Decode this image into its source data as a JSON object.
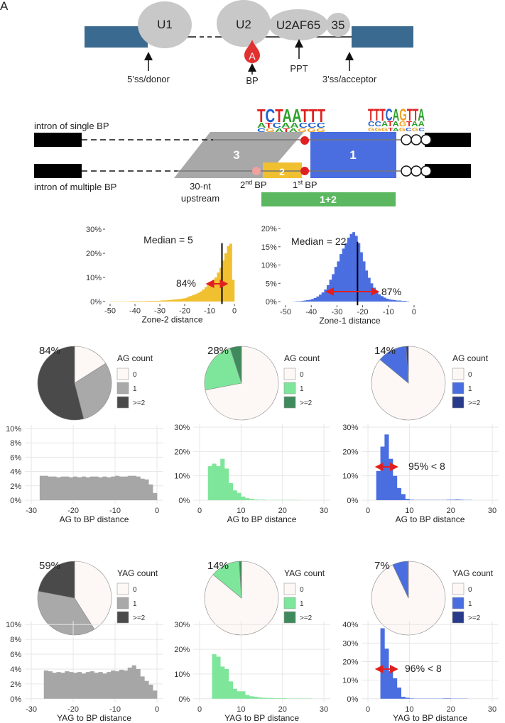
{
  "panel_a": {
    "label": "A",
    "u1": "U1",
    "u2": "U2",
    "u2af65": "U2AF65",
    "u2af35": "35",
    "bp_base": "A",
    "donor": "5’ss/donor",
    "bp": "BP",
    "ppt": "PPT",
    "acceptor": "3’ss/acceptor"
  },
  "panel_b": {
    "logo_left": [
      "TCTAATTT",
      "ATCAACCC",
      "CGATAGGG"
    ],
    "logo_right": [
      "TTTCAGTTA",
      "CCATAGTAA",
      "GGGTAGCGC"
    ],
    "single": "intron of single BP",
    "multiple": "intron of multiple BP",
    "zone3": "3",
    "zone1": "1",
    "zone2": "2",
    "upstream": [
      "30-nt",
      "upstream"
    ],
    "second_bp": {
      "num": "2",
      "sup": "nd",
      "text": "BP"
    },
    "first_bp": {
      "num": "1",
      "sup": "st",
      "text": "BP"
    },
    "zone12": "1+2"
  },
  "chart_data": [
    {
      "type": "histogram",
      "xlabel": "Zone-2 distance",
      "color": "#f0c030",
      "grid": false,
      "bins": [
        -50,
        -49,
        -48,
        -47,
        -46,
        -45,
        -44,
        -43,
        -42,
        -41,
        -40,
        -39,
        -38,
        -37,
        -36,
        -35,
        -34,
        -33,
        -32,
        -31,
        -30,
        -29,
        -28,
        -27,
        -26,
        -25,
        -24,
        -23,
        -22,
        -21,
        -20,
        -19,
        -18,
        -17,
        -16,
        -15,
        -14,
        -13,
        -12,
        -11,
        -10,
        -9,
        -8,
        -7,
        -6,
        -5,
        -4,
        -3,
        -2,
        -1,
        0
      ],
      "values": [
        0.1,
        0.1,
        0.1,
        0.1,
        0.1,
        0.1,
        0.1,
        0.1,
        0.2,
        0.2,
        0.2,
        0.2,
        0.2,
        0.2,
        0.2,
        0.3,
        0.3,
        0.3,
        0.3,
        0.3,
        0.4,
        0.5,
        0.5,
        0.6,
        0.7,
        0.8,
        0.9,
        1.0,
        1.1,
        1.3,
        1.5,
        2.0,
        2.3,
        2.7,
        3.1,
        3.6,
        4.2,
        5.0,
        6.0,
        7.0,
        8,
        9,
        10,
        12,
        14,
        17,
        20,
        23,
        24,
        9
      ],
      "xlim": [
        -52,
        2
      ],
      "ylim": [
        -1,
        31
      ],
      "xticks": [
        -50,
        -40,
        -30,
        -20,
        -10,
        0
      ],
      "yticks": [
        {
          "value": 0,
          "label": "0%"
        },
        {
          "value": 10,
          "label": "10%"
        },
        {
          "value": 20,
          "label": "20%"
        },
        {
          "value": 30,
          "label": "30%"
        }
      ],
      "median": -5,
      "median_label": "Median = 5",
      "arrow": [
        -11,
        -3
      ],
      "arrow_label": "84%"
    },
    {
      "type": "histogram",
      "xlabel": "Zone-1 distance",
      "color": "#4a6ee0",
      "grid": false,
      "bins": [
        -50,
        -49,
        -48,
        -47,
        -46,
        -45,
        -44,
        -43,
        -42,
        -41,
        -40,
        -39,
        -38,
        -37,
        -36,
        -35,
        -34,
        -33,
        -32,
        -31,
        -30,
        -29,
        -28,
        -27,
        -26,
        -25,
        -24,
        -23,
        -22,
        -21,
        -20,
        -19,
        -18,
        -17,
        -16,
        -15,
        -14,
        -13,
        -12,
        -11,
        -10,
        -9,
        -8,
        -7,
        -6,
        -5,
        -4,
        -3,
        -2,
        -1,
        0
      ],
      "values": [
        0,
        0,
        0,
        0.05,
        0.1,
        0.1,
        0.2,
        0.3,
        0.4,
        0.5,
        0.7,
        1.0,
        1.4,
        1.9,
        2.5,
        3.3,
        4.5,
        6,
        7.5,
        9.5,
        11,
        13,
        14.5,
        16,
        17.5,
        18.5,
        19,
        18,
        16,
        13.5,
        11,
        8.5,
        6.5,
        5,
        3.8,
        2.8,
        2,
        1.5,
        1.1,
        0.8,
        0.6,
        0.5,
        0.4,
        0.3,
        0.3,
        0.2,
        0.2,
        0.1,
        0,
        0
      ],
      "xlim": [
        -52,
        2
      ],
      "ylim": [
        -1,
        21
      ],
      "xticks": [
        -50,
        -40,
        -30,
        -20,
        -10,
        0
      ],
      "yticks": [
        {
          "value": 0,
          "label": "0%"
        },
        {
          "value": 5,
          "label": "5%"
        },
        {
          "value": 10,
          "label": "10%"
        },
        {
          "value": 15,
          "label": "15%"
        },
        {
          "value": 20,
          "label": "20%"
        }
      ],
      "median": -22,
      "median_label": "Median = 22",
      "arrow": [
        -34,
        -14
      ],
      "arrow_label": "87%"
    },
    {
      "type": "pie",
      "legend_title": "AG count",
      "categories": [
        "0",
        "1",
        ">=2"
      ],
      "values": [
        16,
        30,
        54
      ],
      "colors": [
        "#fdf8f5",
        "#a9a9a9",
        "#4a4a4a"
      ],
      "annotation": "84%"
    },
    {
      "type": "pie",
      "legend_title": "AG count",
      "categories": [
        "0",
        "1",
        ">=2"
      ],
      "values": [
        72,
        23,
        5
      ],
      "colors": [
        "#fdf8f5",
        "#7ee69a",
        "#3f8a5c"
      ],
      "annotation": "28%"
    },
    {
      "type": "pie",
      "legend_title": "AG count",
      "categories": [
        "0",
        "1",
        ">=2"
      ],
      "values": [
        86,
        13,
        1
      ],
      "colors": [
        "#fdf8f5",
        "#4a6ee0",
        "#283a8a"
      ],
      "annotation": "14%"
    },
    {
      "type": "histogram",
      "xlabel": "AG to BP distance",
      "color": "#a6a6a6",
      "grid": true,
      "bins": [
        -28,
        -27,
        -26,
        -25,
        -24,
        -23,
        -22,
        -21,
        -20,
        -19,
        -18,
        -17,
        -16,
        -15,
        -14,
        -13,
        -12,
        -11,
        -10,
        -9,
        -8,
        -7,
        -6,
        -5,
        -4,
        -3,
        -2,
        -1,
        0
      ],
      "values": [
        3.4,
        3.4,
        3.3,
        3.3,
        3.2,
        3.3,
        3.3,
        3.2,
        3.3,
        3.2,
        3.3,
        3.2,
        3.3,
        3.3,
        3.2,
        3.3,
        3.2,
        3.3,
        3.4,
        3.3,
        3.3,
        3.4,
        3.4,
        3.3,
        3.0,
        2.9,
        2.2,
        1.0
      ],
      "xlim": [
        -31.5,
        1.5
      ],
      "ylim": [
        -0.5,
        10.5
      ],
      "xticks": [
        -30,
        -20,
        -10,
        0
      ],
      "yticks": [
        {
          "value": 0,
          "label": "0%"
        },
        {
          "value": 2,
          "label": "2%"
        },
        {
          "value": 4,
          "label": "4%"
        },
        {
          "value": 6,
          "label": "6%"
        },
        {
          "value": 8,
          "label": "8%"
        },
        {
          "value": 10,
          "label": "10%"
        }
      ]
    },
    {
      "type": "histogram",
      "xlabel": "AG to BP distance",
      "color": "#7ee69a",
      "grid": true,
      "bins": [
        2,
        3,
        4,
        5,
        6,
        7,
        8,
        9,
        10,
        11,
        12,
        13,
        14,
        15,
        16,
        17,
        18,
        19,
        20,
        21,
        22,
        23,
        24,
        25,
        26,
        27,
        28,
        29,
        30
      ],
      "values": [
        14,
        15,
        14,
        17,
        13,
        7,
        4,
        3,
        1.5,
        0.8,
        0.5,
        0.3,
        0.2,
        0.2,
        0.1,
        0.1,
        0.1,
        0.1,
        0.1,
        0.1,
        0.1,
        0.1,
        0,
        0,
        0,
        0,
        0,
        0
      ],
      "xlim": [
        -1.5,
        31.5
      ],
      "ylim": [
        -1.5,
        31.5
      ],
      "xticks": [
        0,
        10,
        20,
        30
      ],
      "yticks": [
        {
          "value": 0,
          "label": "0%"
        },
        {
          "value": 10,
          "label": "10%"
        },
        {
          "value": 20,
          "label": "20%"
        },
        {
          "value": 30,
          "label": "30%"
        }
      ]
    },
    {
      "type": "histogram",
      "xlabel": "AG to BP distance",
      "color": "#4a6ee0",
      "grid": true,
      "bins": [
        2,
        3,
        4,
        5,
        6,
        7,
        8,
        9,
        10,
        11,
        12,
        13,
        14,
        15,
        16,
        17,
        18,
        19,
        20,
        21,
        22,
        23,
        24,
        25,
        26,
        27,
        28,
        29,
        30
      ],
      "values": [
        12,
        22,
        27,
        17,
        10,
        5,
        2.5,
        0.5,
        0.2,
        0.1,
        0.1,
        0.1,
        0.1,
        0.1,
        0.1,
        0.1,
        0.1,
        0.2,
        0.2,
        0.3,
        0.2,
        0.1,
        0.1,
        0,
        0,
        0,
        0,
        0
      ],
      "xlim": [
        -1.5,
        31.5
      ],
      "ylim": [
        -1.5,
        31.5
      ],
      "xticks": [
        0,
        10,
        20,
        30
      ],
      "yticks": [
        {
          "value": 0,
          "label": "0%"
        },
        {
          "value": 10,
          "label": "10%"
        },
        {
          "value": 20,
          "label": "20%"
        },
        {
          "value": 30,
          "label": "30%"
        }
      ],
      "arrow": [
        2,
        7
      ],
      "arrow_label": "95% < 8"
    },
    {
      "type": "pie",
      "legend_title": "YAG count",
      "categories": [
        "0",
        "1",
        ">=2"
      ],
      "values": [
        41,
        37,
        22
      ],
      "colors": [
        "#fdf8f5",
        "#a9a9a9",
        "#4a4a4a"
      ],
      "annotation": "59%"
    },
    {
      "type": "pie",
      "legend_title": "YAG count",
      "categories": [
        "0",
        "1",
        ">=2"
      ],
      "values": [
        86,
        13,
        1
      ],
      "colors": [
        "#fdf8f5",
        "#7ee69a",
        "#3f8a5c"
      ],
      "annotation": "14%"
    },
    {
      "type": "pie",
      "legend_title": "YAG count",
      "categories": [
        "0",
        "1",
        ">=2"
      ],
      "values": [
        93,
        6.7,
        0.3
      ],
      "colors": [
        "#fdf8f5",
        "#4a6ee0",
        "#283a8a"
      ],
      "annotation": "7%"
    },
    {
      "type": "histogram",
      "xlabel": "YAG to BP distance",
      "color": "#a6a6a6",
      "grid": true,
      "bins": [
        -27,
        -26,
        -25,
        -24,
        -23,
        -22,
        -21,
        -20,
        -19,
        -18,
        -17,
        -16,
        -15,
        -14,
        -13,
        -12,
        -11,
        -10,
        -9,
        -8,
        -7,
        -6,
        -5,
        -4,
        -3,
        -2,
        -1,
        0
      ],
      "values": [
        3.8,
        3.7,
        3.5,
        3.6,
        3.5,
        3.7,
        3.6,
        3.5,
        3.6,
        3.4,
        3.6,
        3.7,
        3.5,
        3.6,
        3.4,
        3.6,
        3.8,
        3.7,
        3.9,
        3.8,
        4.2,
        4.5,
        4.0,
        3.0,
        2.4,
        1.9,
        1.1
      ],
      "xlim": [
        -31.5,
        1.5
      ],
      "ylim": [
        -0.5,
        10.5
      ],
      "xticks": [
        -30,
        -20,
        -10,
        0
      ],
      "yticks": [
        {
          "value": 0,
          "label": "0%"
        },
        {
          "value": 2,
          "label": "2%"
        },
        {
          "value": 4,
          "label": "4%"
        },
        {
          "value": 6,
          "label": "6%"
        },
        {
          "value": 8,
          "label": "8%"
        },
        {
          "value": 10,
          "label": "10%"
        }
      ]
    },
    {
      "type": "histogram",
      "xlabel": "YAG to BP distance",
      "color": "#7ee69a",
      "grid": true,
      "bins": [
        3,
        4,
        5,
        6,
        7,
        8,
        9,
        10,
        11,
        12,
        13,
        14,
        15,
        16,
        17,
        18,
        19,
        20,
        21,
        22,
        23,
        24,
        25,
        26,
        27,
        28,
        29,
        30
      ],
      "values": [
        18,
        17,
        13,
        12,
        7,
        4,
        3,
        3,
        1.5,
        1,
        0.8,
        0.5,
        0.4,
        0.3,
        0.3,
        0.2,
        0.2,
        0.2,
        0.1,
        0.1,
        0.1,
        0.1,
        0.1,
        0.1,
        0,
        0,
        0
      ],
      "xlim": [
        -1.5,
        31.5
      ],
      "ylim": [
        -1.5,
        31.5
      ],
      "xticks": [
        0,
        10,
        20,
        30
      ],
      "yticks": [
        {
          "value": 0,
          "label": "0%"
        },
        {
          "value": 10,
          "label": "10%"
        },
        {
          "value": 20,
          "label": "20%"
        },
        {
          "value": 30,
          "label": "30%"
        }
      ]
    },
    {
      "type": "histogram",
      "xlabel": "YAG to BP distance",
      "color": "#4a6ee0",
      "grid": true,
      "bins": [
        3,
        4,
        5,
        6,
        7,
        8,
        9,
        10,
        11,
        12,
        13,
        14,
        15,
        16,
        17,
        18,
        19,
        20,
        21,
        22,
        23,
        24,
        25,
        26,
        27,
        28,
        29,
        30
      ],
      "values": [
        38,
        27,
        15,
        11,
        6,
        1,
        0.5,
        0.2,
        0.1,
        0.1,
        0.1,
        0.1,
        0.1,
        0.1,
        0.1,
        0.2,
        0.2,
        0.1,
        0.1,
        0.1,
        0.1,
        0,
        0,
        0,
        0,
        0,
        0
      ],
      "xlim": [
        -1.5,
        31.5
      ],
      "ylim": [
        -2,
        42
      ],
      "xticks": [
        0,
        10,
        20,
        30
      ],
      "yticks": [
        {
          "value": 0,
          "label": "0%"
        },
        {
          "value": 10,
          "label": "10%"
        },
        {
          "value": 20,
          "label": "20%"
        },
        {
          "value": 30,
          "label": "30%"
        },
        {
          "value": 40,
          "label": "40%"
        }
      ],
      "arrow": [
        2,
        7
      ],
      "arrow_label": "96% < 8"
    }
  ]
}
